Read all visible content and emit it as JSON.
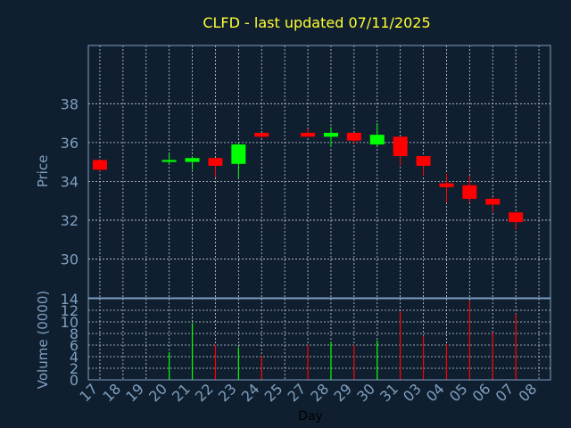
{
  "chart_data": [
    {
      "type": "candlestick",
      "title": "CLFD - last updated 07/11/2025",
      "ylabel": "Price",
      "xlabel": "",
      "ylim": [
        28,
        41
      ],
      "yticks": [
        30,
        32,
        34,
        36,
        38
      ],
      "grid": true,
      "up_color": "#00ff00",
      "down_color": "#ff0000",
      "x_ticks": [
        "17",
        "18",
        "19",
        "20",
        "21",
        "22",
        "23",
        "24",
        "25",
        "27",
        "28",
        "29",
        "30",
        "31",
        "03",
        "04",
        "05",
        "06",
        "07",
        "08"
      ],
      "candles": [
        {
          "day": "17",
          "open": 35.1,
          "high": 35.1,
          "low": 34.5,
          "close": 34.6
        },
        {
          "day": "20",
          "open": 35.0,
          "high": 35.4,
          "low": 34.9,
          "close": 35.1
        },
        {
          "day": "21",
          "open": 35.0,
          "high": 35.3,
          "low": 34.6,
          "close": 35.2
        },
        {
          "day": "22",
          "open": 35.2,
          "high": 35.2,
          "low": 34.2,
          "close": 34.8
        },
        {
          "day": "23",
          "open": 34.9,
          "high": 36.0,
          "low": 34.2,
          "close": 35.9
        },
        {
          "day": "24",
          "open": 36.5,
          "high": 36.5,
          "low": 36.2,
          "close": 36.3
        },
        {
          "day": "27",
          "open": 36.5,
          "high": 36.7,
          "low": 36.3,
          "close": 36.3
        },
        {
          "day": "28",
          "open": 36.3,
          "high": 36.8,
          "low": 35.8,
          "close": 36.5
        },
        {
          "day": "29",
          "open": 36.5,
          "high": 36.5,
          "low": 35.9,
          "close": 36.1
        },
        {
          "day": "30",
          "open": 35.9,
          "high": 37.0,
          "low": 35.8,
          "close": 36.4
        },
        {
          "day": "31",
          "open": 36.3,
          "high": 36.3,
          "low": 34.8,
          "close": 35.3
        },
        {
          "day": "03",
          "open": 35.3,
          "high": 35.3,
          "low": 34.3,
          "close": 34.8
        },
        {
          "day": "04",
          "open": 33.9,
          "high": 34.4,
          "low": 32.9,
          "close": 33.7
        },
        {
          "day": "05",
          "open": 33.8,
          "high": 34.3,
          "low": 32.9,
          "close": 33.1
        },
        {
          "day": "06",
          "open": 33.1,
          "high": 33.2,
          "low": 32.4,
          "close": 32.8
        },
        {
          "day": "07",
          "open": 32.4,
          "high": 32.4,
          "low": 31.5,
          "close": 31.9
        }
      ]
    },
    {
      "type": "bar",
      "ylabel": "Volume (0000)",
      "xlabel": "Day",
      "ylim": [
        0,
        14
      ],
      "yticks": [
        0,
        2,
        4,
        6,
        8,
        10,
        12,
        14
      ],
      "grid": true,
      "categories": [
        "17",
        "20",
        "21",
        "22",
        "23",
        "24",
        "27",
        "28",
        "29",
        "30",
        "31",
        "03",
        "04",
        "05",
        "06",
        "07"
      ],
      "values": [
        0,
        4.8,
        9.8,
        6.0,
        5.6,
        4.2,
        6.0,
        6.6,
        6.0,
        6.8,
        11.8,
        7.6,
        6.2,
        13.6,
        8.2,
        11.4
      ],
      "colors": [
        "#ff0000",
        "#00ff00",
        "#00ff00",
        "#ff0000",
        "#00ff00",
        "#ff0000",
        "#ff0000",
        "#00ff00",
        "#ff0000",
        "#00ff00",
        "#ff0000",
        "#ff0000",
        "#ff0000",
        "#ff0000",
        "#ff0000",
        "#ff0000"
      ]
    }
  ]
}
